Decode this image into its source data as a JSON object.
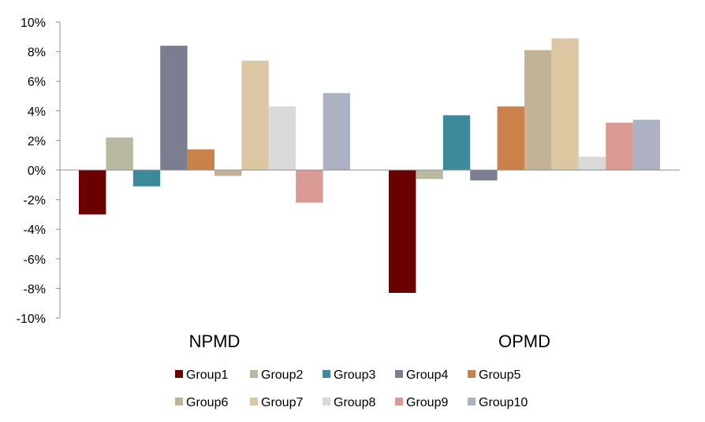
{
  "chart_data": {
    "type": "bar",
    "categories": [
      "NPMD",
      "OPMD"
    ],
    "series": [
      {
        "name": "Group1",
        "color": "#6b0000",
        "values": [
          -3.0,
          -8.3
        ]
      },
      {
        "name": "Group2",
        "color": "#b9b8a1",
        "values": [
          2.2,
          -0.6
        ]
      },
      {
        "name": "Group3",
        "color": "#3a8a9a",
        "values": [
          -1.1,
          3.7
        ]
      },
      {
        "name": "Group4",
        "color": "#7b7d91",
        "values": [
          8.4,
          -0.7
        ]
      },
      {
        "name": "Group5",
        "color": "#c8824a",
        "values": [
          1.4,
          4.3
        ]
      },
      {
        "name": "Group6",
        "color": "#c3b396",
        "values": [
          -0.4,
          8.1
        ]
      },
      {
        "name": "Group7",
        "color": "#dcc7a3",
        "values": [
          7.4,
          8.9
        ]
      },
      {
        "name": "Group8",
        "color": "#d9d9d9",
        "values": [
          4.3,
          0.9
        ]
      },
      {
        "name": "Group9",
        "color": "#d99a93",
        "values": [
          -2.2,
          3.2
        ]
      },
      {
        "name": "Group10",
        "color": "#adb2c2",
        "values": [
          5.2,
          3.4
        ]
      }
    ],
    "yticks": [
      "10%",
      "8%",
      "6%",
      "4%",
      "2%",
      "0%",
      "-2%",
      "-4%",
      "-6%",
      "-8%",
      "-10%"
    ],
    "ylim": [
      -10,
      10
    ],
    "legend_position": "bottom",
    "grid": false
  }
}
